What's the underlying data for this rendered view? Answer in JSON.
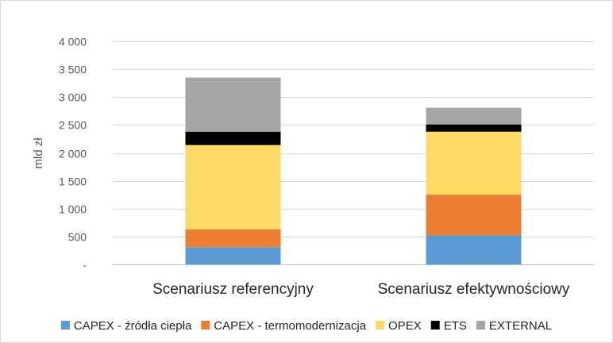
{
  "chart_data": {
    "type": "bar",
    "stacked": true,
    "title": "",
    "xlabel": "",
    "ylabel": "mld zł",
    "ylim": [
      0,
      4000
    ],
    "yticks": [
      0,
      500,
      1000,
      1500,
      2000,
      2500,
      3000,
      3500,
      4000
    ],
    "ytick_labels": [
      "-",
      "500",
      "1 000",
      "1 500",
      "2 000",
      "2 500",
      "3 000",
      "3 500",
      "4 000"
    ],
    "grid": true,
    "legend_position": "bottom",
    "categories": [
      "Scenariusz referencyjny",
      "Scenariusz efektywnościowy"
    ],
    "series": [
      {
        "name": "CAPEX - źródła ciepła",
        "color": "#5b9bd5",
        "values": [
          310,
          520
        ]
      },
      {
        "name": "CAPEX - termomodernizacja",
        "color": "#ed7d31",
        "values": [
          320,
          730
        ]
      },
      {
        "name": "OPEX",
        "color": "#ffd966",
        "values": [
          1510,
          1130
        ]
      },
      {
        "name": "ETS",
        "color": "#000000",
        "values": [
          240,
          130
        ]
      },
      {
        "name": "EXTERNAL",
        "color": "#a5a5a5",
        "values": [
          970,
          300
        ]
      }
    ]
  }
}
